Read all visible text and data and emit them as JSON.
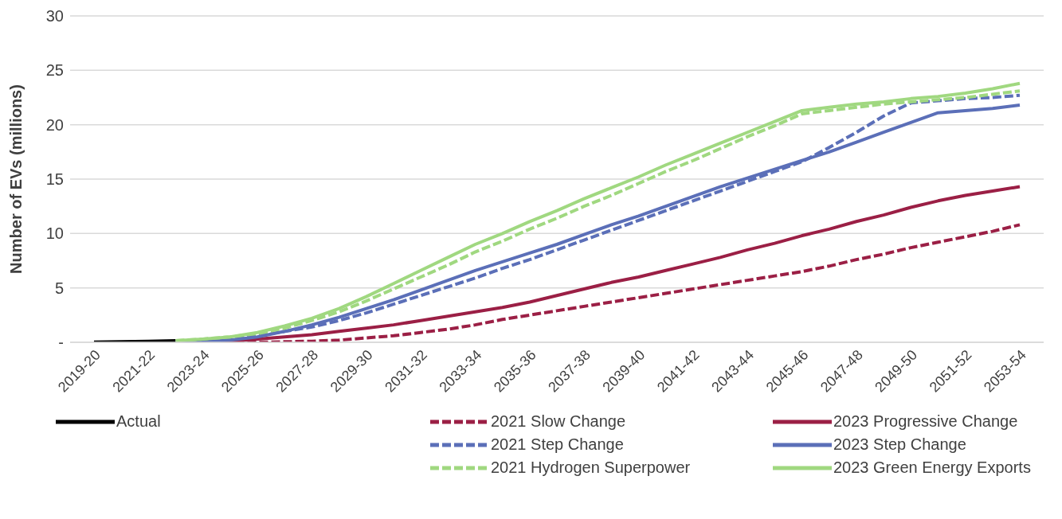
{
  "chart_data": {
    "type": "line",
    "ylabel": "Number of EVs (millions)",
    "categories": [
      "2019-20",
      null,
      "2021-22",
      null,
      "2023-24",
      null,
      "2025-26",
      null,
      "2027-28",
      null,
      "2029-30",
      null,
      "2031-32",
      null,
      "2033-34",
      null,
      "2035-36",
      null,
      "2037-38",
      null,
      "2039-40",
      null,
      "2041-42",
      null,
      "2043-44",
      null,
      "2045-46",
      null,
      "2047-48",
      null,
      "2049-50",
      null,
      "2051-52",
      null,
      "2053-54"
    ],
    "ylim": [
      0,
      30
    ],
    "yticks": [
      {
        "value": 0,
        "label": "-"
      },
      5,
      10,
      15,
      20,
      25,
      30
    ],
    "grid": "y",
    "legend": "bottom",
    "marker": "none",
    "series": [
      {
        "name": "Actual",
        "color": "#000000",
        "line_style": "solid",
        "values": [
          0.02,
          0.05,
          0.1,
          0.15,
          null,
          null,
          null,
          null,
          null,
          null,
          null,
          null,
          null,
          null,
          null,
          null,
          null,
          null,
          null,
          null,
          null,
          null,
          null,
          null,
          null,
          null,
          null,
          null,
          null,
          null,
          null,
          null,
          null,
          null,
          null
        ]
      },
      {
        "name": "2021 Slow Change",
        "color": "#9b1f45",
        "line_style": "dashed",
        "values": [
          null,
          null,
          null,
          0,
          0,
          0,
          0,
          0.05,
          0.1,
          0.2,
          0.4,
          0.6,
          0.9,
          1.2,
          1.6,
          2.1,
          2.5,
          2.9,
          3.3,
          3.7,
          4.1,
          4.5,
          4.9,
          5.3,
          5.7,
          6.1,
          6.5,
          7.0,
          7.6,
          8.1,
          8.7,
          9.2,
          9.7,
          10.2,
          10.8
        ]
      },
      {
        "name": "2023 Progressive Change",
        "color": "#9b1f45",
        "line_style": "solid",
        "values": [
          null,
          null,
          null,
          0,
          0.05,
          0.1,
          0.3,
          0.5,
          0.7,
          1.0,
          1.3,
          1.6,
          2.0,
          2.4,
          2.8,
          3.2,
          3.7,
          4.3,
          4.9,
          5.5,
          6.0,
          6.6,
          7.2,
          7.8,
          8.5,
          9.1,
          9.8,
          10.4,
          11.1,
          11.7,
          12.4,
          13.0,
          13.5,
          13.9,
          14.3
        ]
      },
      {
        "name": "2021 Step Change",
        "color": "#5b6fb8",
        "line_style": "dashed",
        "values": [
          null,
          null,
          null,
          0,
          0.1,
          0.3,
          0.6,
          1.0,
          1.4,
          2.0,
          2.7,
          3.5,
          4.3,
          5.1,
          5.9,
          6.8,
          7.6,
          8.5,
          9.4,
          10.3,
          11.2,
          12.1,
          13.0,
          13.9,
          14.8,
          15.7,
          16.6,
          17.9,
          19.3,
          20.8,
          22.0,
          22.2,
          22.4,
          22.5,
          22.7
        ]
      },
      {
        "name": "2023 Step Change",
        "color": "#5b6fb8",
        "line_style": "solid",
        "values": [
          null,
          null,
          null,
          0,
          0.05,
          0.2,
          0.5,
          1.0,
          1.6,
          2.3,
          3.1,
          3.9,
          4.8,
          5.7,
          6.6,
          7.4,
          8.2,
          9.0,
          9.9,
          10.8,
          11.6,
          12.5,
          13.4,
          14.3,
          15.1,
          15.9,
          16.7,
          17.5,
          18.4,
          19.3,
          20.2,
          21.1,
          21.3,
          21.5,
          21.8
        ]
      },
      {
        "name": "2021 Hydrogen Superpower",
        "color": "#a0d880",
        "line_style": "dashed",
        "values": [
          null,
          null,
          null,
          0.15,
          0.3,
          0.5,
          0.8,
          1.3,
          2.0,
          2.8,
          3.8,
          4.9,
          6.0,
          7.1,
          8.3,
          9.3,
          10.4,
          11.4,
          12.5,
          13.5,
          14.6,
          15.7,
          16.7,
          17.8,
          18.9,
          19.9,
          21.0,
          21.3,
          21.6,
          21.9,
          22.1,
          22.3,
          22.5,
          22.8,
          23.1
        ]
      },
      {
        "name": "2023 Green Energy Exports",
        "color": "#a0d880",
        "line_style": "solid",
        "values": [
          null,
          null,
          null,
          0.15,
          0.3,
          0.5,
          0.9,
          1.5,
          2.2,
          3.1,
          4.2,
          5.4,
          6.6,
          7.8,
          9.0,
          10.0,
          11.1,
          12.1,
          13.2,
          14.2,
          15.2,
          16.3,
          17.3,
          18.3,
          19.3,
          20.3,
          21.3,
          21.6,
          21.9,
          22.1,
          22.4,
          22.6,
          22.9,
          23.3,
          23.8
        ]
      }
    ]
  }
}
